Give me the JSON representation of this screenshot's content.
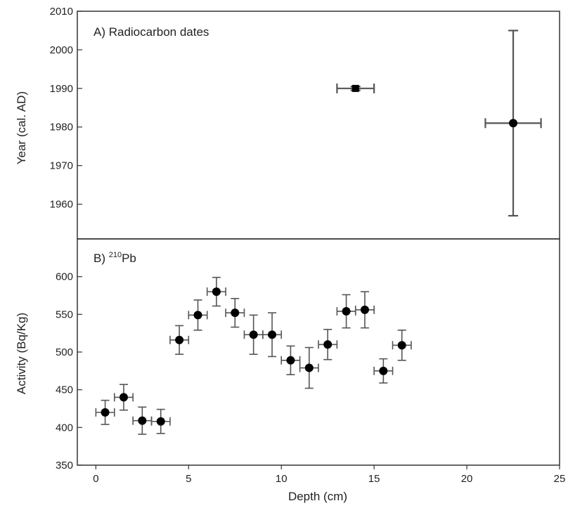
{
  "chart_data": [
    {
      "type": "scatter",
      "panel_label": "A) Radiocarbon dates",
      "xlabel": "Depth (cm)",
      "ylabel": "Year (cal. AD)",
      "xlim": [
        -1,
        25
      ],
      "ylim": [
        1951,
        2010
      ],
      "yticks": [
        1960,
        1970,
        1980,
        1990,
        2000,
        2010
      ],
      "grid": false,
      "points": [
        {
          "x": 14.0,
          "y": 1990,
          "xerr": 1.0,
          "yerr": 0.5,
          "marker": "square"
        },
        {
          "x": 22.5,
          "y": 1981,
          "xerr": 1.5,
          "yerr": 24,
          "marker": "circle"
        }
      ]
    },
    {
      "type": "scatter",
      "panel_label_prefix": "B) ",
      "panel_label_superscript": "210",
      "panel_label_suffix": "Pb",
      "xlabel": "Depth (cm)",
      "ylabel": "Activity (Bq/Kg)",
      "xlim": [
        -1,
        25
      ],
      "ylim": [
        350,
        650
      ],
      "xticks": [
        0,
        5,
        10,
        15,
        20,
        25
      ],
      "yticks": [
        350,
        400,
        450,
        500,
        550,
        600
      ],
      "grid": false,
      "points": [
        {
          "x": 0.5,
          "y": 420,
          "xerr": 0.5,
          "yerr": 16
        },
        {
          "x": 1.5,
          "y": 440,
          "xerr": 0.5,
          "yerr": 17
        },
        {
          "x": 2.5,
          "y": 409,
          "xerr": 0.5,
          "yerr": 18
        },
        {
          "x": 3.5,
          "y": 408,
          "xerr": 0.5,
          "yerr": 16
        },
        {
          "x": 4.5,
          "y": 516,
          "xerr": 0.5,
          "yerr": 19
        },
        {
          "x": 5.5,
          "y": 549,
          "xerr": 0.5,
          "yerr": 20
        },
        {
          "x": 6.5,
          "y": 580,
          "xerr": 0.5,
          "yerr": 19
        },
        {
          "x": 7.5,
          "y": 552,
          "xerr": 0.5,
          "yerr": 19
        },
        {
          "x": 8.5,
          "y": 523,
          "xerr": 0.5,
          "yerr": 26
        },
        {
          "x": 9.5,
          "y": 523,
          "xerr": 0.5,
          "yerr": 29
        },
        {
          "x": 10.5,
          "y": 489,
          "xerr": 0.5,
          "yerr": 19
        },
        {
          "x": 11.5,
          "y": 479,
          "xerr": 0.5,
          "yerr": 27
        },
        {
          "x": 12.5,
          "y": 510,
          "xerr": 0.5,
          "yerr": 20
        },
        {
          "x": 13.5,
          "y": 554,
          "xerr": 0.5,
          "yerr": 22
        },
        {
          "x": 14.5,
          "y": 556,
          "xerr": 0.5,
          "yerr": 24
        },
        {
          "x": 15.5,
          "y": 475,
          "xerr": 0.5,
          "yerr": 16
        },
        {
          "x": 16.5,
          "y": 509,
          "xerr": 0.5,
          "yerr": 20
        }
      ]
    }
  ]
}
